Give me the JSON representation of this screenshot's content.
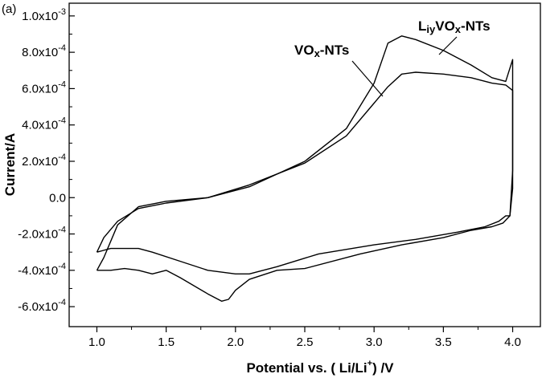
{
  "chart_data": {
    "type": "line",
    "panel_label": "(a)",
    "xlabel": {
      "prefix": "Potential vs. ( Li/Li",
      "sup": "+",
      "suffix": ") /V"
    },
    "ylabel": "Current/A",
    "xlim": [
      0.8,
      4.2
    ],
    "ylim": [
      -0.00071,
      0.00107
    ],
    "x_ticks": [
      {
        "value": 1.0,
        "label": "1.0"
      },
      {
        "value": 1.5,
        "label": "1.5"
      },
      {
        "value": 2.0,
        "label": "2.0"
      },
      {
        "value": 2.5,
        "label": "2.5"
      },
      {
        "value": 3.0,
        "label": "3.0"
      },
      {
        "value": 3.5,
        "label": "3.5"
      },
      {
        "value": 4.0,
        "label": "4.0"
      }
    ],
    "y_ticks": [
      {
        "value": 0.001,
        "mantissa": "1.0x10",
        "exp": "-3"
      },
      {
        "value": 0.0008,
        "mantissa": "8.0x10",
        "exp": "-4"
      },
      {
        "value": 0.0006,
        "mantissa": "6.0x10",
        "exp": "-4"
      },
      {
        "value": 0.0004,
        "mantissa": "4.0x10",
        "exp": "-4"
      },
      {
        "value": 0.0002,
        "mantissa": "2.0x10",
        "exp": "-4"
      },
      {
        "value": 0.0,
        "mantissa": "0.0",
        "exp": ""
      },
      {
        "value": -0.0002,
        "mantissa": "-2.0x10",
        "exp": "-4"
      },
      {
        "value": -0.0004,
        "mantissa": "-4.0x10",
        "exp": "-4"
      },
      {
        "value": -0.0006,
        "mantissa": "-6.0x10",
        "exp": "-4"
      }
    ],
    "series": [
      {
        "name": "LiyVOx-NTs",
        "x": [
          1.0,
          1.05,
          1.15,
          1.3,
          1.5,
          1.8,
          2.1,
          2.5,
          2.8,
          3.0,
          3.1,
          3.2,
          3.3,
          3.5,
          3.7,
          3.85,
          3.95,
          4.0,
          4.0,
          3.98,
          3.93,
          3.85,
          3.7,
          3.5,
          3.2,
          2.9,
          2.5,
          2.3,
          2.1,
          2.0,
          1.95,
          1.9,
          1.8,
          1.6,
          1.5,
          1.4,
          1.3,
          1.2,
          1.1,
          1.0
        ],
        "y": [
          -0.0004,
          -0.00033,
          -0.00015,
          -5e-05,
          -2e-05,
          0.0,
          6e-05,
          0.0002,
          0.00038,
          0.00063,
          0.00085,
          0.00089,
          0.00087,
          0.00081,
          0.00073,
          0.00066,
          0.00064,
          0.00076,
          5e-05,
          -0.0001,
          -0.00014,
          -0.00016,
          -0.00018,
          -0.00022,
          -0.00026,
          -0.00031,
          -0.00039,
          -0.0004,
          -0.00045,
          -0.00051,
          -0.00056,
          -0.00057,
          -0.00053,
          -0.00044,
          -0.0004,
          -0.00042,
          -0.0004,
          -0.00039,
          -0.0004,
          -0.0004
        ]
      },
      {
        "name": "VOx-NTs",
        "x": [
          1.0,
          1.05,
          1.15,
          1.3,
          1.5,
          1.8,
          2.1,
          2.5,
          2.8,
          3.0,
          3.1,
          3.2,
          3.3,
          3.5,
          3.7,
          3.85,
          3.95,
          4.0,
          4.0,
          3.98,
          3.95,
          3.9,
          3.8,
          3.6,
          3.3,
          3.0,
          2.6,
          2.3,
          2.1,
          2.0,
          1.8,
          1.6,
          1.4,
          1.3,
          1.2,
          1.1,
          1.0
        ],
        "y": [
          -0.0003,
          -0.00022,
          -0.00013,
          -6e-05,
          -3e-05,
          0.0,
          7e-05,
          0.00019,
          0.00034,
          0.00052,
          0.00061,
          0.00068,
          0.00069,
          0.00068,
          0.00066,
          0.00063,
          0.00062,
          0.00059,
          0.00015,
          -0.0001,
          -0.0001,
          -0.00013,
          -0.00016,
          -0.00019,
          -0.00023,
          -0.00026,
          -0.00031,
          -0.00038,
          -0.00042,
          -0.00042,
          -0.0004,
          -0.00035,
          -0.0003,
          -0.00028,
          -0.00028,
          -0.00028,
          -0.0003
        ]
      }
    ],
    "annotations": [
      {
        "text": "LiyVOx-NTs",
        "base": "L",
        "sub1": "iy",
        "mid": "VO",
        "sub2": "x",
        "tail": "-NTs"
      },
      {
        "text": "VOx-NTs",
        "base": "VO",
        "sub": "x",
        "tail": "-NTs"
      }
    ],
    "grid": false,
    "legend": "none"
  }
}
